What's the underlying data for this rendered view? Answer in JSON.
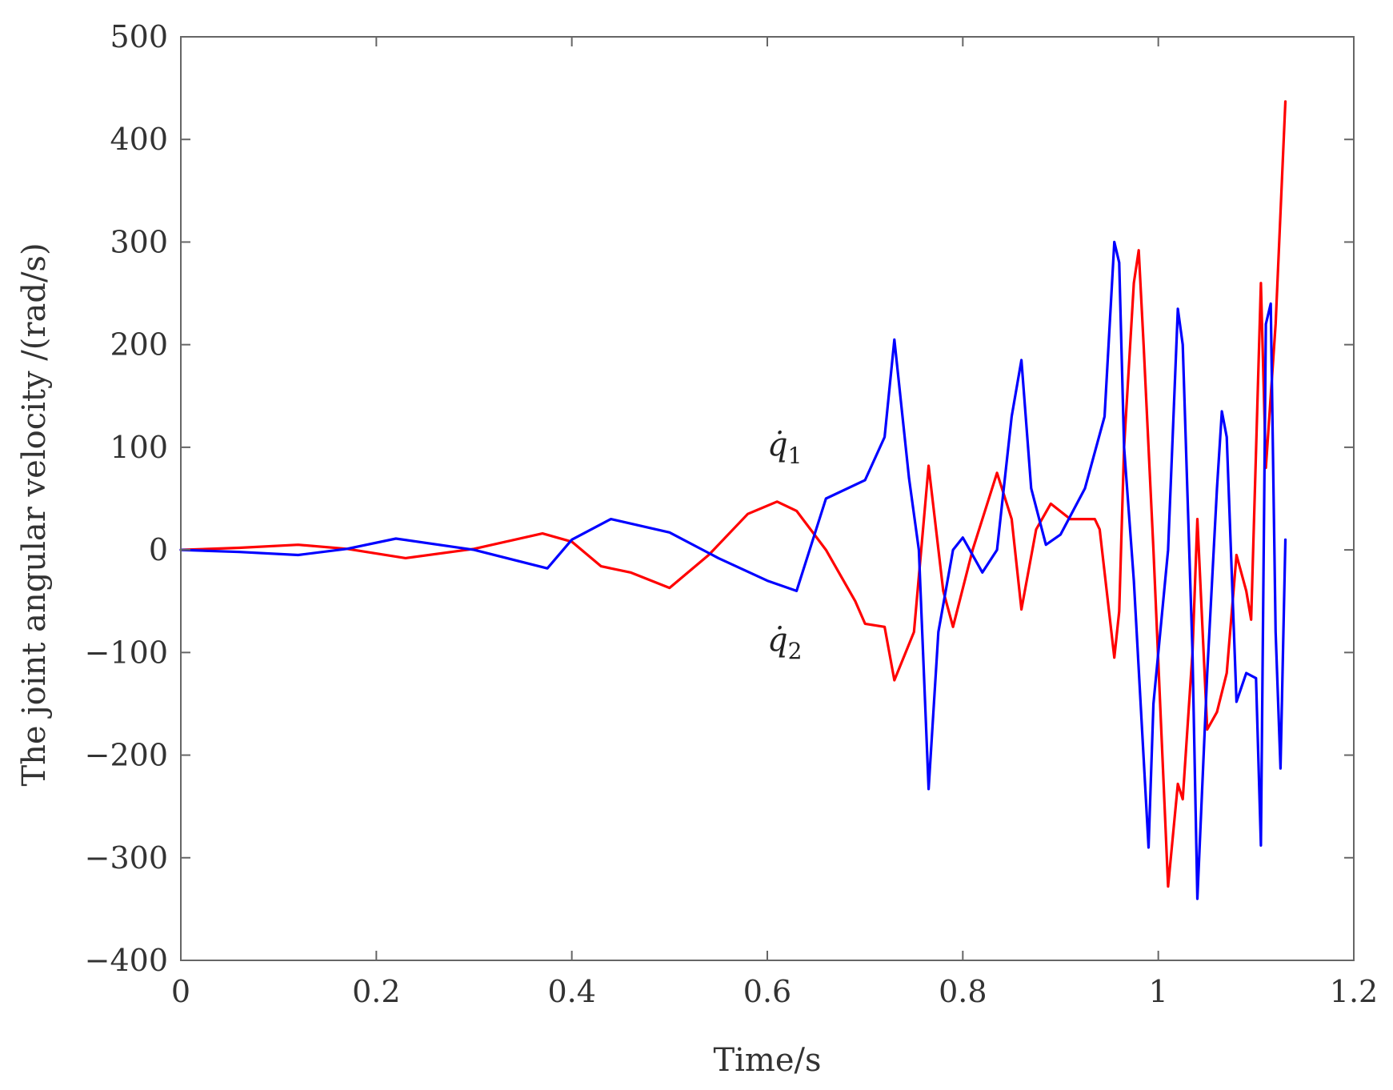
{
  "chart_data": {
    "type": "line",
    "xlabel": "Time/s",
    "ylabel": "The joint angular velocity /(rad/s)",
    "xlim": [
      0,
      1.2
    ],
    "ylim": [
      -400,
      500
    ],
    "xticks": [
      0,
      0.2,
      0.4,
      0.6,
      0.8,
      1,
      1.2
    ],
    "yticks": [
      -400,
      -300,
      -200,
      -100,
      0,
      100,
      200,
      300,
      400,
      500
    ],
    "xtick_labels": [
      "0",
      "0.2",
      "0.4",
      "0.6",
      "0.8",
      "1",
      "1.2"
    ],
    "ytick_labels": [
      "−400",
      "−300",
      "−200",
      "−100",
      "0",
      "100",
      "200",
      "300",
      "400",
      "500"
    ],
    "grid": false,
    "series": [
      {
        "color": "#ff0000",
        "points": [
          [
            0,
            0
          ],
          [
            0.06,
            2
          ],
          [
            0.12,
            5
          ],
          [
            0.17,
            1
          ],
          [
            0.23,
            -8
          ],
          [
            0.3,
            1
          ],
          [
            0.37,
            16
          ],
          [
            0.4,
            8
          ],
          [
            0.43,
            -16
          ],
          [
            0.46,
            -22
          ],
          [
            0.5,
            -37
          ],
          [
            0.54,
            -5
          ],
          [
            0.58,
            35
          ],
          [
            0.61,
            47
          ],
          [
            0.63,
            38
          ],
          [
            0.66,
            0
          ],
          [
            0.69,
            -50
          ],
          [
            0.7,
            -72
          ],
          [
            0.72,
            -75
          ],
          [
            0.73,
            -127
          ],
          [
            0.75,
            -80
          ],
          [
            0.765,
            82
          ],
          [
            0.78,
            -40
          ],
          [
            0.79,
            -75
          ],
          [
            0.81,
            0
          ],
          [
            0.835,
            75
          ],
          [
            0.85,
            30
          ],
          [
            0.86,
            -58
          ],
          [
            0.875,
            20
          ],
          [
            0.89,
            45
          ],
          [
            0.91,
            30
          ],
          [
            0.935,
            30
          ],
          [
            0.94,
            20
          ],
          [
            0.955,
            -105
          ],
          [
            0.96,
            -60
          ],
          [
            0.965,
            100
          ],
          [
            0.975,
            260
          ],
          [
            0.98,
            292
          ],
          [
            0.985,
            200
          ],
          [
            0.995,
            0
          ],
          [
            1.01,
            -328
          ],
          [
            1.02,
            -228
          ],
          [
            1.025,
            -243
          ],
          [
            1.035,
            -100
          ],
          [
            1.04,
            30
          ],
          [
            1.05,
            -175
          ],
          [
            1.06,
            -158
          ],
          [
            1.07,
            -120
          ],
          [
            1.08,
            -5
          ],
          [
            1.09,
            -40
          ],
          [
            1.095,
            -68
          ],
          [
            1.105,
            260
          ],
          [
            1.11,
            80
          ],
          [
            1.12,
            220
          ],
          [
            1.13,
            437
          ]
        ]
      },
      {
        "color": "#0000ff",
        "points": [
          [
            0,
            0
          ],
          [
            0.06,
            -2
          ],
          [
            0.12,
            -5
          ],
          [
            0.17,
            1
          ],
          [
            0.22,
            11
          ],
          [
            0.3,
            0
          ],
          [
            0.375,
            -18
          ],
          [
            0.4,
            10
          ],
          [
            0.44,
            30
          ],
          [
            0.5,
            17
          ],
          [
            0.55,
            -8
          ],
          [
            0.6,
            -30
          ],
          [
            0.63,
            -40
          ],
          [
            0.66,
            50
          ],
          [
            0.7,
            68
          ],
          [
            0.72,
            110
          ],
          [
            0.73,
            205
          ],
          [
            0.745,
            70
          ],
          [
            0.755,
            0
          ],
          [
            0.765,
            -233
          ],
          [
            0.775,
            -80
          ],
          [
            0.79,
            0
          ],
          [
            0.8,
            12
          ],
          [
            0.82,
            -22
          ],
          [
            0.835,
            0
          ],
          [
            0.85,
            130
          ],
          [
            0.86,
            185
          ],
          [
            0.87,
            60
          ],
          [
            0.885,
            5
          ],
          [
            0.9,
            15
          ],
          [
            0.925,
            60
          ],
          [
            0.945,
            130
          ],
          [
            0.955,
            300
          ],
          [
            0.96,
            280
          ],
          [
            0.965,
            100
          ],
          [
            0.975,
            -30
          ],
          [
            0.99,
            -290
          ],
          [
            0.995,
            -150
          ],
          [
            1.01,
            0
          ],
          [
            1.02,
            235
          ],
          [
            1.025,
            200
          ],
          [
            1.035,
            -100
          ],
          [
            1.04,
            -340
          ],
          [
            1.05,
            -120
          ],
          [
            1.06,
            60
          ],
          [
            1.065,
            135
          ],
          [
            1.07,
            110
          ],
          [
            1.08,
            -148
          ],
          [
            1.09,
            -120
          ],
          [
            1.1,
            -125
          ],
          [
            1.105,
            -288
          ],
          [
            1.11,
            220
          ],
          [
            1.115,
            240
          ],
          [
            1.12,
            -80
          ],
          [
            1.125,
            -213
          ],
          [
            1.13,
            10
          ]
        ]
      }
    ],
    "annotations": [
      {
        "base": "q̇",
        "sub": "1",
        "x": 0.6,
        "y": 92
      },
      {
        "base": "q̇",
        "sub": "2",
        "x": 0.6,
        "y": -98
      }
    ]
  }
}
